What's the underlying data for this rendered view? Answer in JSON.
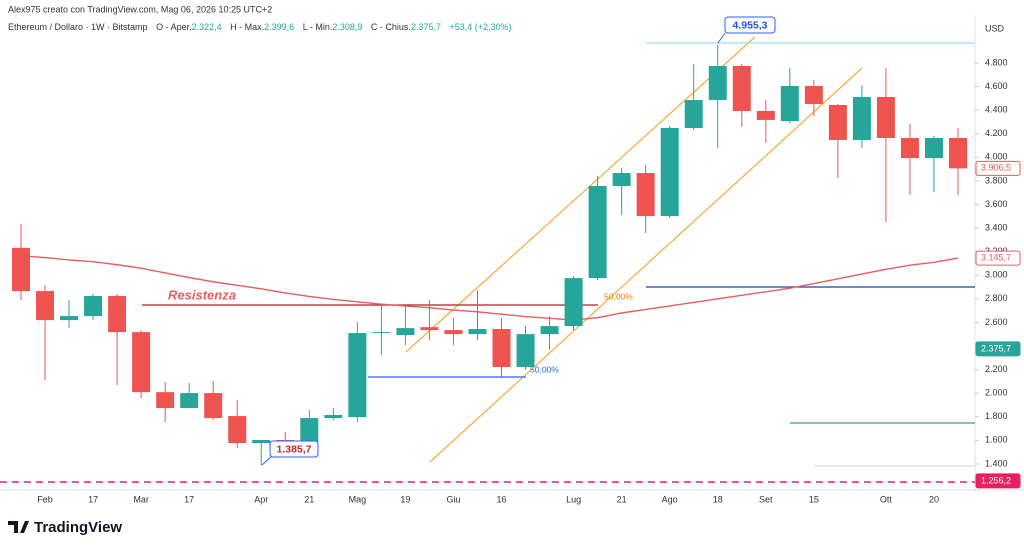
{
  "chart_data": {
    "type": "candlestick",
    "header": {
      "credit": "Alex975 creato con TradingView.com, Mag 06, 2026 10:25 UTC+2",
      "symbol": "Ethereum / Dollaro · 1W · Bitstamp",
      "ohlc": [
        {
          "label": "O - Aper.",
          "value": "2.322,4"
        },
        {
          "label": "H - Max.",
          "value": "2.399,6"
        },
        {
          "label": "L - Min.",
          "value": "2.308,9"
        },
        {
          "label": "C - Chius.",
          "value": "2.375,7"
        }
      ],
      "change": "+53,4 (+2,30%)"
    },
    "currency": "USD",
    "logo": "TradingView",
    "categories": [
      null,
      "Feb",
      null,
      "17",
      null,
      "Mar",
      null,
      "17",
      null,
      null,
      "Apr",
      null,
      "21",
      null,
      "Mag",
      null,
      "19",
      null,
      "Giu",
      null,
      "16",
      null,
      null,
      "Lug",
      null,
      "21",
      null,
      "Ago",
      null,
      "18",
      null,
      "Set",
      null,
      "15",
      null,
      null,
      "Ott",
      null,
      "20",
      null
    ],
    "open": [
      3232,
      2866,
      2620,
      2654,
      2824,
      2518,
      2009,
      1874,
      2001,
      1806,
      1577,
      1603,
      1577,
      1789,
      1797,
      2510,
      2493,
      2560,
      2535,
      2501,
      2544,
      2222,
      2501,
      2569,
      2976,
      3757,
      3867,
      3502,
      4249,
      4486,
      4775,
      4393,
      4308,
      4605,
      4444,
      4147,
      4512,
      4164,
      3994,
      4164
    ],
    "high": [
      3435,
      2917,
      2790,
      2841,
      2841,
      2535,
      2094,
      2086,
      2103,
      1942,
      1603,
      1670,
      1857,
      1874,
      2603,
      2747,
      2747,
      2790,
      2637,
      2875,
      2637,
      2569,
      2654,
      2993,
      3842,
      3909,
      3935,
      4266,
      4792,
      4955.3,
      4792,
      4486,
      4758,
      4656,
      4452,
      4613,
      4758,
      4283,
      4181,
      4249
    ],
    "low": [
      2790,
      2111,
      2552,
      2620,
      2069,
      1959,
      1755,
      1874,
      1772,
      1535,
      1385.7,
      1535,
      1535,
      1772,
      1755,
      2323,
      2408,
      2450,
      2408,
      2450,
      2128,
      2200,
      2366,
      2535,
      2960,
      3511,
      3358,
      3485,
      4232,
      4079,
      4257,
      4121,
      4291,
      4350,
      3825,
      4079,
      3451,
      3680,
      3706,
      3680
    ],
    "close": [
      2866,
      2620,
      2654,
      2824,
      2518,
      2009,
      1874,
      2001,
      1789,
      1577,
      1603,
      1580,
      1789,
      1815,
      2510,
      2518,
      2552,
      2535,
      2501,
      2544,
      2222,
      2501,
      2569,
      2976,
      3757,
      3867,
      3502,
      4249,
      4486,
      4775,
      4393,
      4317,
      4605,
      4452,
      4147,
      4512,
      4164,
      3994,
      4164,
      3906.5
    ],
    "up_color": "#26a69a",
    "down_color": "#ef5350",
    "moving_average": {
      "color": "#e35d63",
      "values": [
        3165,
        3150,
        3130,
        3115,
        3090,
        3060,
        3020,
        2980,
        2945,
        2915,
        2885,
        2850,
        2820,
        2795,
        2775,
        2755,
        2740,
        2725,
        2705,
        2690,
        2670,
        2650,
        2635,
        2620,
        2640,
        2680,
        2710,
        2740,
        2770,
        2800,
        2830,
        2860,
        2890,
        2930,
        2970,
        3010,
        3050,
        3085,
        3110,
        3145.7
      ]
    },
    "ylim": [
      1196,
      5207
    ],
    "yticks": [
      {
        "value": 1400,
        "label": "1.400"
      },
      {
        "value": 1600,
        "label": "1.600"
      },
      {
        "value": 1800,
        "label": "1.800"
      },
      {
        "value": 2000,
        "label": "2.000"
      },
      {
        "value": 2200,
        "label": "2.200"
      },
      {
        "value": 2400,
        "label": "2.400"
      },
      {
        "value": 2600,
        "label": "2.600"
      },
      {
        "value": 2800,
        "label": "2.800"
      },
      {
        "value": 3000,
        "label": "3.000"
      },
      {
        "value": 3200,
        "label": "3.200"
      },
      {
        "value": 3400,
        "label": "3.400"
      },
      {
        "value": 3600,
        "label": "3.600"
      },
      {
        "value": 3800,
        "label": "3.800"
      },
      {
        "value": 4000,
        "label": "4.000"
      },
      {
        "value": 4200,
        "label": "4.200"
      },
      {
        "value": 4400,
        "label": "4.400"
      },
      {
        "value": 4600,
        "label": "4.600"
      },
      {
        "value": 4800,
        "label": "4.800"
      }
    ],
    "price_labels": [
      {
        "value": 3906.5,
        "label": "3.906,5",
        "color": "#ef5350",
        "filled": false
      },
      {
        "value": 3145.7,
        "label": "3.145,7",
        "color": "#e35d63",
        "filled": false
      },
      {
        "value": 2375.7,
        "label": "2.375,7",
        "color": "#26a69a",
        "filled": true
      },
      {
        "value": 1256.2,
        "label": "1.256,2",
        "color": "#e91e63",
        "filled": true
      }
    ],
    "high_label": {
      "value": 4955.3,
      "label": "4.955,3"
    },
    "low_label": {
      "value": 1385.7,
      "label": "1.385,7"
    },
    "annotations": {
      "resistance": "Resistenza",
      "fib_upper": "50,00%",
      "fib_lower": "50,00%"
    }
  }
}
